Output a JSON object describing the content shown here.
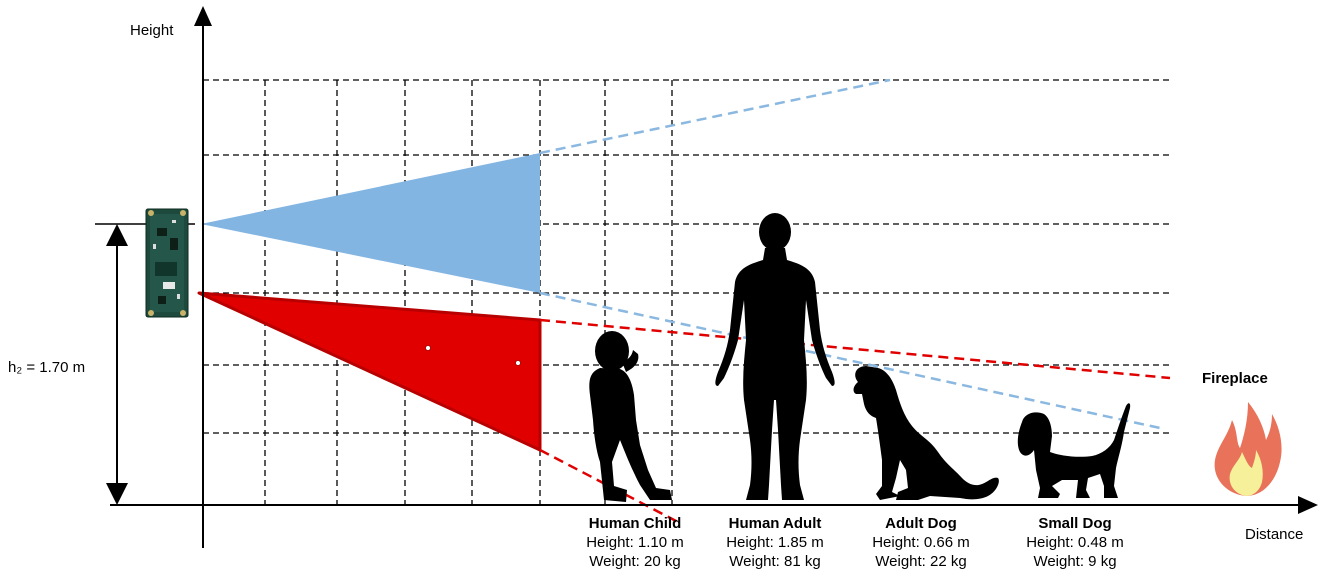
{
  "axes": {
    "y_label": "Height",
    "x_label": "Distance"
  },
  "sensor": {
    "height_label": "h₂ = 1.70 m"
  },
  "entities": [
    {
      "name": "Human Child",
      "height": "Height: 1.10 m",
      "weight": "Weight: 20 kg"
    },
    {
      "name": "Human Adult",
      "height": "Height: 1.85 m",
      "weight": "Weight: 81 kg"
    },
    {
      "name": "Adult Dog",
      "height": "Height: 0.66 m",
      "weight": "Weight: 22 kg"
    },
    {
      "name": "Small Dog",
      "height": "Height: 0.48 m",
      "weight": "Weight: 9 kg"
    }
  ],
  "fireplace": {
    "label": "Fireplace"
  },
  "colors": {
    "blue_cone": "#83b5e3",
    "blue_dash": "#8ab8e0",
    "red_cone": "#e00000",
    "red_cone_edge": "#b80000",
    "red_dash": "#e00000",
    "grid": "#000000",
    "silhouette": "#000000",
    "board": "#1d4a3c",
    "fire_outer": "#e8735a",
    "fire_inner": "#f6f09a"
  }
}
